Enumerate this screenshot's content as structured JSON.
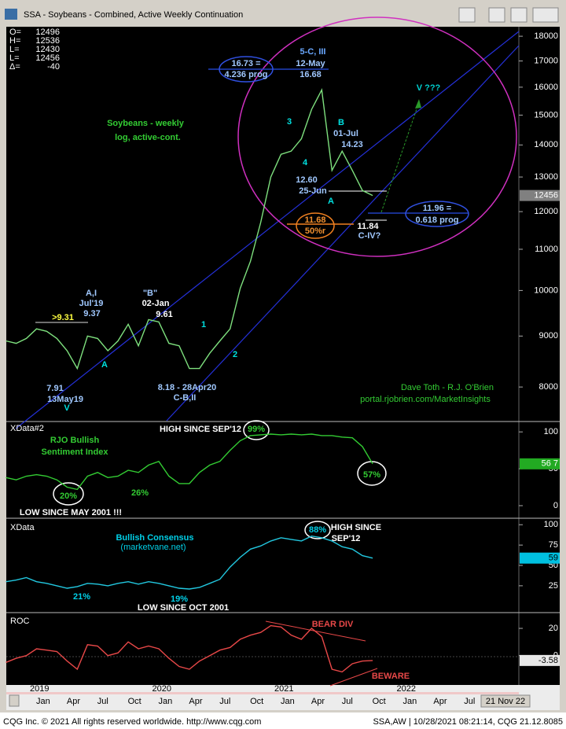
{
  "window": {
    "title": "SSA - Soybeans - Combined, Active Weekly Continuation"
  },
  "info": {
    "labels": [
      "O=",
      "H=",
      "L=",
      "L=",
      "Δ="
    ],
    "values": [
      12496,
      12536,
      12430,
      12456,
      -40
    ]
  },
  "time_axis": {
    "categories": [
      null,
      null,
      null,
      "Jan",
      null,
      null,
      "Apr",
      null,
      null,
      "Jul",
      null,
      null,
      "Oct",
      null,
      null,
      "Jan",
      null,
      null,
      "Apr",
      null,
      null,
      "Jul",
      null,
      null,
      "Oct",
      null,
      null,
      "Jan",
      null,
      null,
      "Apr",
      null,
      null,
      "Jul",
      null,
      null,
      "Oct",
      null,
      null,
      "Jan",
      null,
      null,
      "Apr",
      null,
      null,
      "Jul",
      null,
      null
    ],
    "years": [
      null,
      null,
      null,
      "2019",
      null,
      null,
      null,
      null,
      null,
      null,
      null,
      null,
      null,
      null,
      null,
      "2020",
      null,
      null,
      null,
      null,
      null,
      null,
      null,
      null,
      null,
      null,
      null,
      "2021",
      null,
      null,
      null,
      null,
      null,
      null,
      null,
      null,
      null,
      null,
      null,
      "2022",
      null,
      null,
      null,
      null,
      null,
      null,
      null,
      null
    ],
    "end_label": "21 Nov 22"
  },
  "chart_data": [
    {
      "type": "line",
      "log_scale": true,
      "color": "#7ee07e",
      "values": [
        8900,
        8850,
        8950,
        9150,
        9100,
        8950,
        8700,
        8350,
        9000,
        8950,
        8700,
        8900,
        9250,
        8800,
        9350,
        9300,
        8850,
        8800,
        8350,
        8350,
        8650,
        8900,
        9150,
        10050,
        10700,
        11700,
        13000,
        13700,
        13800,
        14200,
        15200,
        15900,
        13200,
        13800,
        13200,
        12600,
        12456,
        null,
        null,
        null,
        null,
        null,
        null,
        null,
        null,
        null,
        null,
        null
      ],
      "ylim": [
        7400,
        18400
      ],
      "yticks": [
        8000,
        9000,
        10000,
        11000,
        12000,
        13000,
        14000,
        15000,
        16000,
        17000,
        18000
      ],
      "last_label": 12456,
      "annotations": [
        "Soybeans - weekly",
        "log, active-cont.",
        "16.73 =",
        "4.236 prog",
        "5-C, III",
        "12-May",
        "16.68",
        "3",
        "4",
        "B",
        "01-Jul",
        "14.23",
        "12.60",
        "25-Jun",
        "A",
        "11.68",
        "50%r",
        "11.84",
        "C-IV?",
        "11.96 =",
        "0.618 prog",
        "V ???",
        "A,I",
        "Jul'19",
        "9.37",
        ">9.31",
        "\"B\"",
        "02-Jan",
        "9.61",
        "1",
        "2",
        "A",
        "7.91",
        "13May19",
        "V",
        "8.18 - 28Apr20",
        "C-B,II",
        "Dave Toth - R.J. O'Brien",
        "portal.rjobrien.com/MarketInsights"
      ]
    },
    {
      "type": "line",
      "log_scale": false,
      "color": "#33cc33",
      "values": [
        38,
        35,
        40,
        42,
        40,
        35,
        25,
        22,
        40,
        45,
        38,
        40,
        48,
        45,
        55,
        60,
        40,
        30,
        30,
        45,
        55,
        60,
        75,
        88,
        95,
        96,
        97,
        96,
        97,
        96,
        97,
        95,
        95,
        93,
        92,
        80,
        56.7,
        null,
        null,
        null,
        null,
        null,
        null,
        null,
        null,
        null,
        null,
        null
      ],
      "ylim": [
        -16,
        113
      ],
      "yticks": [
        100,
        50,
        0
      ],
      "last_label": "56 7",
      "annotations": [
        "XData#2",
        "RJO Bullish",
        "Sentiment Index",
        "HIGH SINCE SEP'12",
        "99%",
        "57%",
        "20%",
        "26%",
        "LOW SINCE MAY 2001 !!!"
      ]
    },
    {
      "type": "line",
      "log_scale": false,
      "color": "#22c8e0",
      "values": [
        30,
        32,
        35,
        30,
        28,
        25,
        22,
        24,
        28,
        27,
        25,
        28,
        30,
        27,
        30,
        28,
        25,
        22,
        21,
        23,
        28,
        33,
        48,
        60,
        70,
        74,
        80,
        84,
        82,
        80,
        86,
        84,
        80,
        73,
        70,
        62,
        59,
        null,
        null,
        null,
        null,
        null,
        null,
        null,
        null,
        null,
        null,
        null
      ],
      "ylim": [
        -7,
        107
      ],
      "yticks": [
        100,
        75,
        50,
        25
      ],
      "last_label": 59,
      "annotations": [
        "XData",
        "Bullish Consensus",
        "(marketvane.net)",
        "88%",
        "HIGH SINCE",
        "SEP'12",
        "21%",
        "19%",
        "LOW SINCE OCT 2001"
      ]
    },
    {
      "type": "line",
      "log_scale": false,
      "color": "#e84848",
      "values": [
        -5,
        -2,
        0,
        5,
        4,
        3,
        -4,
        -10,
        8,
        7,
        0,
        2,
        10,
        5,
        7,
        5,
        -2,
        -8,
        -10,
        -4,
        0,
        4,
        6,
        12,
        15,
        17,
        22,
        21,
        15,
        12,
        20,
        14,
        -10,
        -12,
        -6,
        -4,
        -3.58,
        null,
        null,
        null,
        null,
        null,
        null,
        null,
        null,
        null,
        null,
        null
      ],
      "ylim": [
        -21,
        31
      ],
      "yticks": [
        20,
        0
      ],
      "last_label": -3.58,
      "annotations": [
        "ROC",
        "BEAR DIV",
        "BEWARE"
      ]
    }
  ],
  "footer": {
    "left": "CQG Inc. © 2021 All rights reserved worldwide. http://www.cqg.com",
    "right": "SSA,AW | 10/28/2021 08:21:14, CQG 21.12.8085"
  }
}
